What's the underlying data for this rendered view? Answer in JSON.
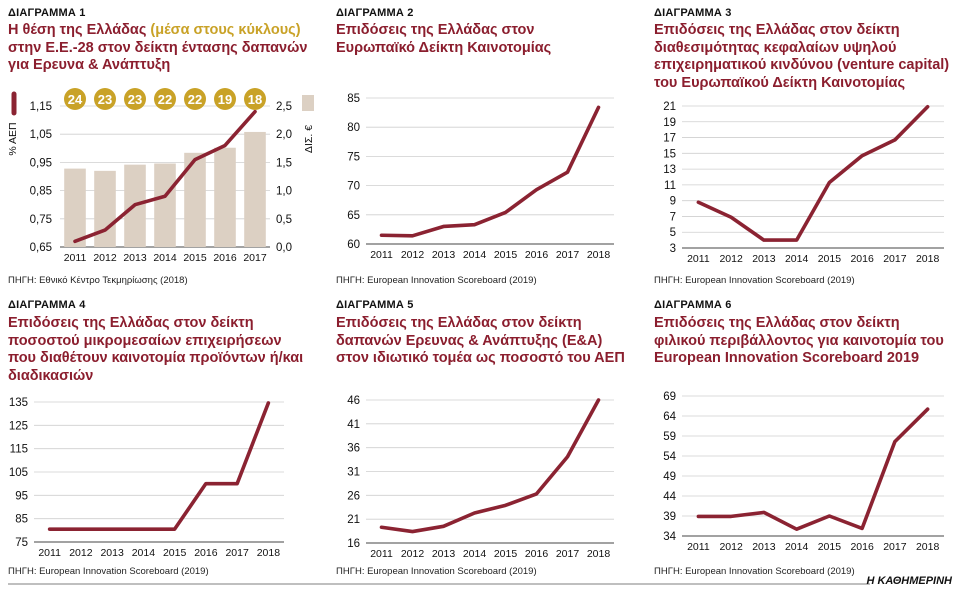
{
  "colors": {
    "line": "#8b2332",
    "bar": "#dcd0c3",
    "badge": "#c9a227",
    "title": "#8b1e2e",
    "grid": "#cfcfcf"
  },
  "chart_data": [
    {
      "id": "d1",
      "type": "bar+line",
      "label": "ΔΙΑΓΡΑΜΜΑ 1",
      "title_main": "Η θέση της Ελλάδας ",
      "title_highlight": "(μέσα στους κύκλους)",
      "title_rest": " στην Ε.Ε.-28 στον δείκτη έντασης δαπανών για Ερευνα & Ανάπτυξη",
      "source": "ΠΗΓΗ: Εθνικό Κέντρο Τεκμηρίωσης (2018)",
      "categories": [
        "2011",
        "2012",
        "2013",
        "2014",
        "2015",
        "2016",
        "2017"
      ],
      "line_values": [
        0.67,
        0.71,
        0.8,
        0.83,
        0.96,
        1.01,
        1.13
      ],
      "bar_values": [
        1.39,
        1.35,
        1.46,
        1.48,
        1.67,
        1.76,
        2.04
      ],
      "ranks": [
        "24",
        "23",
        "23",
        "22",
        "22",
        "19",
        "18"
      ],
      "ylabel_left": "% ΑΕΠ",
      "ylabel_right": "ΔΙΣ. €",
      "ylim_left": [
        0.65,
        1.15
      ],
      "ylim_right": [
        0,
        2.5
      ],
      "yticks_left": [
        "0,65",
        "0,75",
        "0,85",
        "0,95",
        "1,05",
        "1,15"
      ],
      "yticks_right": [
        "0,0",
        "0,5",
        "1,0",
        "1,5",
        "2,0",
        "2,5"
      ]
    },
    {
      "id": "d2",
      "type": "line",
      "label": "ΔΙΑΓΡΑΜΜΑ 2",
      "title_main": "Επιδόσεις της Ελλάδας στον Ευρωπαϊκό Δείκτη Καινοτομίας",
      "source": "ΠΗΓΗ: European Innovation Scoreboard (2019)",
      "categories": [
        "2011",
        "2012",
        "2013",
        "2014",
        "2015",
        "2016",
        "2017",
        "2018"
      ],
      "values": [
        61.5,
        61.4,
        63.0,
        63.3,
        65.4,
        69.3,
        72.3,
        83.4
      ],
      "ylim": [
        60,
        85
      ],
      "yticks": [
        "60",
        "65",
        "70",
        "75",
        "80",
        "85"
      ]
    },
    {
      "id": "d3",
      "type": "line",
      "label": "ΔΙΑΓΡΑΜΜΑ 3",
      "title_main": "Επιδόσεις της Ελλάδας στον δείκτη διαθεσιμότητας κεφαλαίων υψηλού επιχειρηματικού κινδύνου (venture capital) του Ευρωπαϊκού Δείκτη Καινοτομίας",
      "source": "ΠΗΓΗ: European Innovation Scoreboard (2019)",
      "categories": [
        "2011",
        "2012",
        "2013",
        "2014",
        "2015",
        "2016",
        "2017",
        "2018"
      ],
      "values": [
        8.8,
        6.9,
        4.0,
        4.0,
        11.3,
        14.7,
        16.7,
        20.9
      ],
      "ylim": [
        3,
        21
      ],
      "yticks": [
        "3",
        "5",
        "7",
        "9",
        "11",
        "13",
        "15",
        "17",
        "19",
        "21"
      ]
    },
    {
      "id": "d4",
      "type": "line",
      "label": "ΔΙΑΓΡΑΜΜΑ 4",
      "title_main": "Επιδόσεις της Ελλάδας στον δείκτη ποσοστού μικρομεσαίων επιχειρήσεων που διαθέτουν καινοτομία προϊόντων ή/και διαδικασιών",
      "source": "ΠΗΓΗ: European Innovation Scoreboard (2019)",
      "categories": [
        "2011",
        "2012",
        "2013",
        "2014",
        "2015",
        "2016",
        "2017",
        "2018"
      ],
      "values": [
        80.5,
        80.5,
        80.5,
        80.5,
        80.5,
        100.0,
        100.0,
        134.6
      ],
      "ylim": [
        75,
        135
      ],
      "yticks": [
        "75",
        "85",
        "95",
        "105",
        "115",
        "125",
        "135"
      ]
    },
    {
      "id": "d5",
      "type": "line",
      "label": "ΔΙΑΓΡΑΜΜΑ 5",
      "title_main": "Επιδόσεις της Ελλάδας στον δείκτη δαπανών Ερευνας & Ανάπτυξης (Ε&Α) στον ιδιωτικό τομέα ως ποσοστό του ΑΕΠ",
      "source": "ΠΗΓΗ: European Innovation Scoreboard (2019)",
      "categories": [
        "2011",
        "2012",
        "2013",
        "2014",
        "2015",
        "2016",
        "2017",
        "2018"
      ],
      "values": [
        19.3,
        18.4,
        19.5,
        22.3,
        23.9,
        26.3,
        34.1,
        46.0
      ],
      "ylim": [
        16,
        46
      ],
      "yticks": [
        "16",
        "21",
        "26",
        "31",
        "36",
        "41",
        "46"
      ]
    },
    {
      "id": "d6",
      "type": "line",
      "label": "ΔΙΑΓΡΑΜΜΑ 6",
      "title_main": "Επιδόσεις της Ελλάδας στον δείκτη φιλικού περιβάλλοντος για καινοτομία του European Innovation Scoreboard 2019",
      "source": "ΠΗΓΗ: European Innovation Scoreboard (2019)",
      "categories": [
        "2011",
        "2012",
        "2013",
        "2014",
        "2015",
        "2016",
        "2017",
        "2018"
      ],
      "values": [
        38.9,
        38.9,
        39.9,
        35.7,
        39.0,
        35.9,
        57.6,
        65.7
      ],
      "ylim": [
        34,
        69
      ],
      "yticks": [
        "34",
        "39",
        "44",
        "49",
        "54",
        "59",
        "64",
        "69"
      ]
    }
  ],
  "footer": {
    "brand": "Η ΚΑΘΗΜΕΡΙΝΗ"
  }
}
